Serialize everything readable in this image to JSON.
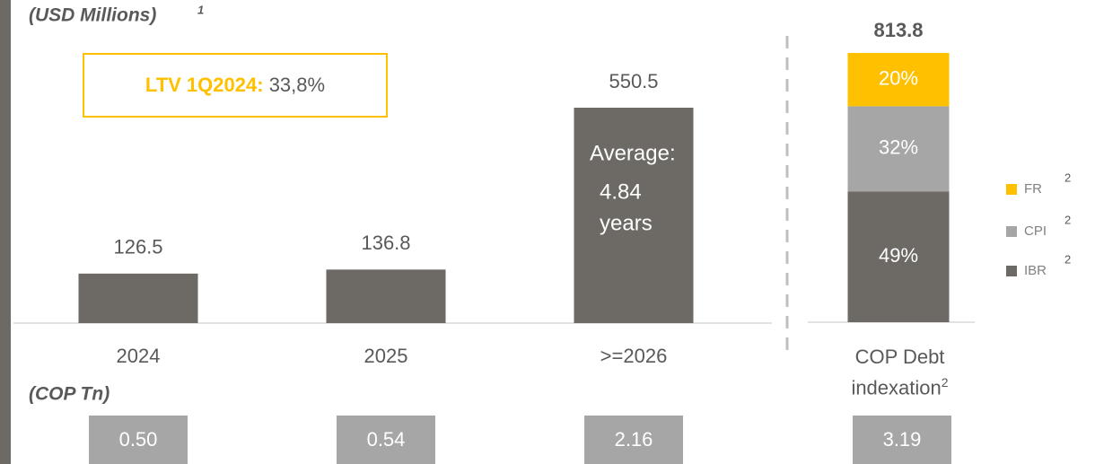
{
  "header": {
    "unit": "(USD Millions)",
    "unit_note": "1",
    "cop_unit": "(COP Tn)"
  },
  "ltv": {
    "label": "LTV 1Q2024:",
    "value": "33,8%"
  },
  "chart_data": [
    {
      "type": "bar",
      "categories": [
        "2024",
        "2025",
        ">=2026"
      ],
      "values": [
        126.5,
        136.8,
        550.5
      ],
      "color": "#6d6a65",
      "annotation": [
        "Average:",
        "4.84",
        "years"
      ],
      "cop_values": [
        0.5,
        0.54,
        2.16
      ],
      "cop_value_labels": [
        "0.50",
        "0.54",
        "2.16"
      ]
    },
    {
      "type": "stacked_bar",
      "categories": [
        "COP Debt indexation"
      ],
      "category_note": "2",
      "total": 813.8,
      "series": [
        {
          "name": "FR",
          "note": "2",
          "color": "#ffc000",
          "values": [
            20
          ],
          "value_labels": [
            "20%"
          ]
        },
        {
          "name": "CPI",
          "note": "2",
          "color": "#a6a6a6",
          "values": [
            32
          ],
          "value_labels": [
            "32%"
          ]
        },
        {
          "name": "IBR",
          "note": "2",
          "color": "#6d6a65",
          "values": [
            49
          ],
          "value_labels": [
            "49%"
          ]
        }
      ],
      "cop_values": [
        3.19
      ]
    }
  ]
}
